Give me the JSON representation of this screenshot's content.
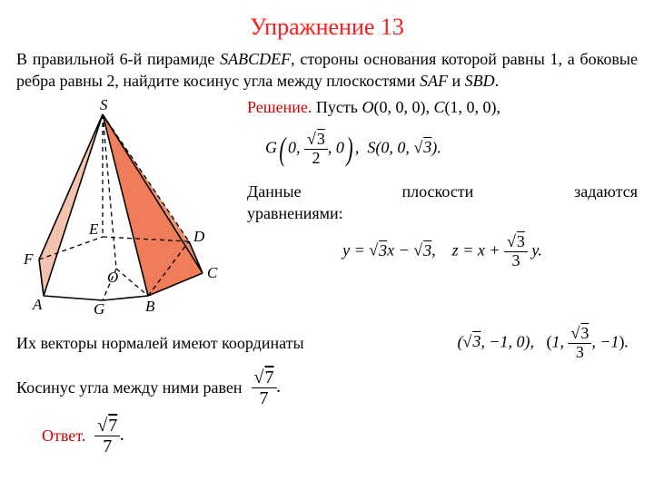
{
  "title": "Упражнение 13",
  "problem": "В правильной 6-й пирамиде <span class='it'>SABCDEF</span>, стороны основания которой равны 1, а боковые ребра равны 2, найдите косинус угла между плоскостями <span class='it'>SAF</span> и <span class='it'>SBD</span>.",
  "solution_label": "Решение.",
  "sol_line1": " Пусть <span class='it'>O</span>(0, 0, 0), <span class='it'>C</span>(1, 0, 0),",
  "sol_line2_html": "<span class='it'>G</span><span class='bigparen-l'>(</span>0, <span class='frac'><span class='num'>&radic;<span class='sqrt'>3</span></span><span class='den'>2</span></span>, 0<span class='bigparen-r'>)</span>, &nbsp;<span class='it'>S</span>(0, 0, &radic;<span class='sqrt'>3</span>).",
  "planes_text": "уравнениями:",
  "planes_row_a": "Данные",
  "planes_row_b": "плоскости",
  "planes_row_c": "задаются",
  "eq_planes": "<span class='it'>y</span> = &radic;<span class='sqrt'>3</span><span class='it'>x</span> &minus; &radic;<span class='sqrt'>3</span>, &nbsp;&nbsp; <span class='it'>z</span> = <span class='it'>x</span> + <span class='frac'><span class='num'>&radic;<span class='sqrt'>3</span></span><span class='den'>3</span></span> <span class='it'>y</span>.",
  "normals_text": "Их векторы нормалей имеют координаты",
  "normals_eq": "(&radic;<span class='sqrt'>3</span>, &minus;1, 0), &nbsp; <span style='font-style:normal'>(</span>1, <span class='frac'><span class='num'>&radic;<span class='sqrt'>3</span></span><span class='den'>3</span></span>, &minus;1<span style='font-style:normal'>)</span>.",
  "cos_text": "Косинус угла между ними равен",
  "cos_val": "<span class='frac'><span class='num'>&radic;<span class='sqrt'>7</span></span><span class='den'>7</span></span>.",
  "answer_label": "Ответ.",
  "answer_val": "<span class='frac'><span class='num'>&radic;<span class='sqrt'>7</span></span><span class='den'>7</span></span>.",
  "figure": {
    "labels": {
      "S": "S",
      "A": "A",
      "B": "B",
      "C": "C",
      "D": "D",
      "E": "E",
      "F": "F",
      "G": "G",
      "O": "O"
    },
    "colors": {
      "face_front": "#f07d5a",
      "face_back": "#f4c3ad",
      "edge": "#000000",
      "dash": "#000000"
    }
  }
}
